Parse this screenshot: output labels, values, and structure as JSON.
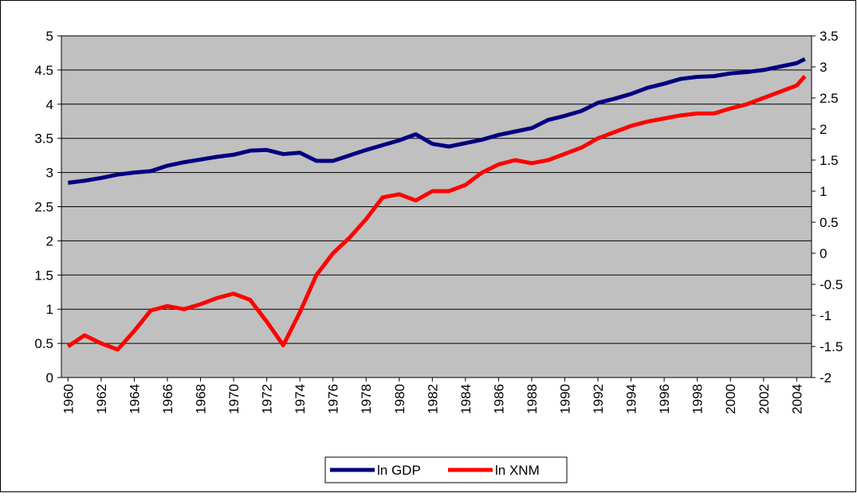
{
  "chart_data": {
    "type": "line",
    "x": [
      1960,
      1961,
      1962,
      1963,
      1964,
      1965,
      1966,
      1967,
      1968,
      1969,
      1970,
      1971,
      1972,
      1973,
      1974,
      1975,
      1976,
      1977,
      1978,
      1979,
      1980,
      1981,
      1982,
      1983,
      1984,
      1985,
      1986,
      1987,
      1988,
      1989,
      1990,
      1991,
      1992,
      1993,
      1994,
      1995,
      1996,
      1997,
      1998,
      1999,
      2000,
      2001,
      2002,
      2003,
      2004,
      2004.5
    ],
    "series": [
      {
        "name": "ln GDP",
        "color": "#000080",
        "axis": "y",
        "values": [
          2.85,
          2.88,
          2.92,
          2.97,
          3.0,
          3.02,
          3.1,
          3.15,
          3.19,
          3.23,
          3.26,
          3.32,
          3.33,
          3.27,
          3.29,
          3.17,
          3.17,
          3.25,
          3.33,
          3.4,
          3.47,
          3.56,
          3.42,
          3.38,
          3.43,
          3.48,
          3.55,
          3.6,
          3.65,
          3.77,
          3.83,
          3.9,
          4.02,
          4.08,
          4.15,
          4.24,
          4.3,
          4.37,
          4.4,
          4.41,
          4.45,
          4.47,
          4.5,
          4.55,
          4.6,
          4.66
        ]
      },
      {
        "name": "ln XNM",
        "color": "#ff0000",
        "axis": "y2",
        "values": [
          -1.5,
          -1.32,
          -1.45,
          -1.55,
          -1.25,
          -0.92,
          -0.85,
          -0.9,
          -0.82,
          -0.72,
          -0.65,
          -0.75,
          -1.1,
          -1.48,
          -0.95,
          -0.35,
          0.0,
          0.25,
          0.55,
          0.9,
          0.95,
          0.85,
          1.0,
          1.0,
          1.1,
          1.3,
          1.43,
          1.5,
          1.45,
          1.5,
          1.6,
          1.7,
          1.85,
          1.95,
          2.05,
          2.12,
          2.17,
          2.22,
          2.25,
          2.25,
          2.33,
          2.4,
          2.5,
          2.6,
          2.7,
          2.85
        ]
      }
    ],
    "xlim": [
      1959.6,
      2004.9
    ],
    "xticks": [
      1960,
      1962,
      1964,
      1966,
      1968,
      1970,
      1972,
      1974,
      1976,
      1978,
      1980,
      1982,
      1984,
      1986,
      1988,
      1990,
      1992,
      1994,
      1996,
      1998,
      2000,
      2002,
      2004
    ],
    "ylim": [
      0,
      5
    ],
    "yticks": [
      0,
      0.5,
      1,
      1.5,
      2,
      2.5,
      3,
      3.5,
      4,
      4.5,
      5
    ],
    "y2lim": [
      -2,
      3.5
    ],
    "y2ticks": [
      -2,
      -1.5,
      -1,
      -0.5,
      0,
      0.5,
      1,
      1.5,
      2,
      2.5,
      3,
      3.5
    ],
    "grid": true,
    "plot_background": "#c0c0c0",
    "legend": "bottom"
  }
}
